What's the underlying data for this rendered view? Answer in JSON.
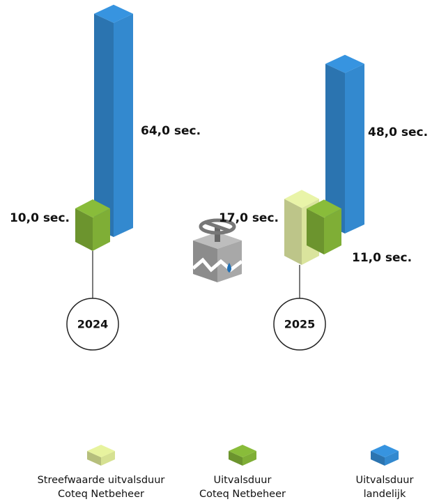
{
  "chart_data": {
    "type": "bar",
    "categories": [
      "2024",
      "2025"
    ],
    "series": [
      {
        "name": "Streefwaarde uitvalsduur\nCoteq Netbeheer",
        "color": "#d6e192",
        "values": [
          null,
          17
        ],
        "value_labels": [
          null,
          "17,0 sec."
        ]
      },
      {
        "name": "Uitvalsduur\nCoteq Netbeheer",
        "color": "#7fae36",
        "values": [
          10,
          11
        ],
        "value_labels": [
          "10,0 sec.",
          "11,0 sec."
        ]
      },
      {
        "name": "Uitvalsduur\nlandelijk",
        "color": "#3389cf",
        "values": [
          64,
          48
        ],
        "value_labels": [
          "64,0 sec.",
          "48,0 sec."
        ]
      }
    ]
  }
}
